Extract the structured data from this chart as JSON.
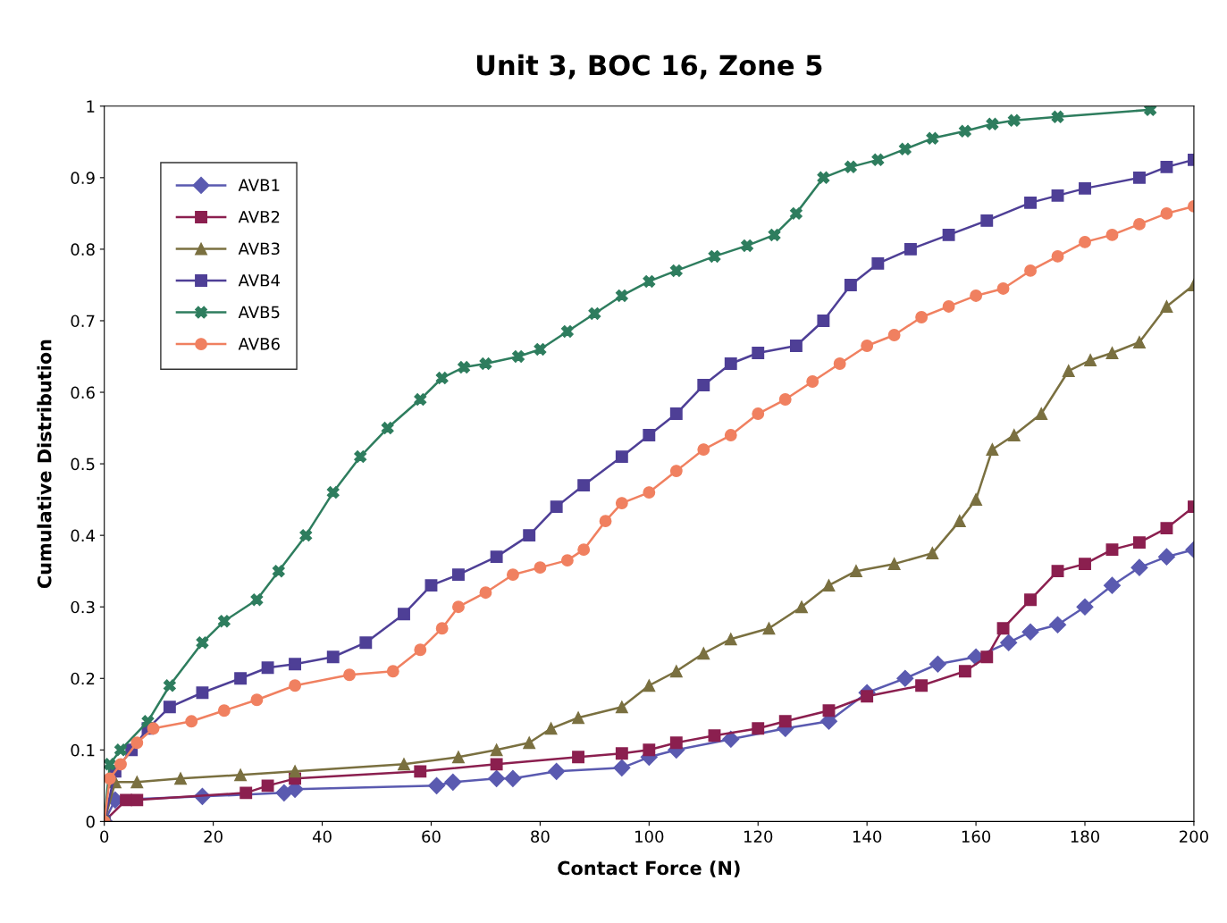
{
  "chart_data": {
    "type": "line",
    "title": "Unit 3, BOC 16, Zone 5",
    "xlabel": "Contact Force (N)",
    "ylabel": "Cumulative Distribution",
    "xlim": [
      0,
      200
    ],
    "xticks": [
      0,
      20,
      40,
      60,
      80,
      100,
      120,
      140,
      160,
      180,
      200
    ],
    "ylim": [
      0,
      1
    ],
    "yticks": [
      0,
      0.1,
      0.2,
      0.3,
      0.4,
      0.5,
      0.6,
      0.7,
      0.8,
      0.9,
      1
    ],
    "grid": false,
    "legend": "top left",
    "line_style": "solid",
    "series": [
      {
        "name": "AVB1",
        "color": "#5a5ab0",
        "marker": "diamond",
        "x": [
          0,
          2,
          18,
          33,
          35,
          61,
          64,
          72,
          75,
          83,
          95,
          100,
          105,
          115,
          125,
          133,
          140,
          147,
          153,
          160,
          166,
          170,
          175,
          180,
          185,
          190,
          195,
          200
        ],
        "values": [
          0,
          0.03,
          0.035,
          0.04,
          0.045,
          0.05,
          0.055,
          0.06,
          0.06,
          0.07,
          0.075,
          0.09,
          0.1,
          0.115,
          0.13,
          0.14,
          0.18,
          0.2,
          0.22,
          0.23,
          0.25,
          0.265,
          0.275,
          0.3,
          0.33,
          0.355,
          0.37,
          0.38
        ]
      },
      {
        "name": "AVB2",
        "color": "#8b1f4f",
        "marker": "square",
        "x": [
          0,
          4,
          6,
          26,
          30,
          35,
          58,
          72,
          87,
          95,
          100,
          105,
          112,
          120,
          125,
          133,
          140,
          150,
          158,
          162,
          165,
          170,
          175,
          180,
          185,
          190,
          195,
          200
        ],
        "values": [
          0,
          0.03,
          0.03,
          0.04,
          0.05,
          0.06,
          0.07,
          0.08,
          0.09,
          0.095,
          0.1,
          0.11,
          0.12,
          0.13,
          0.14,
          0.155,
          0.175,
          0.19,
          0.21,
          0.23,
          0.27,
          0.31,
          0.35,
          0.36,
          0.38,
          0.39,
          0.41,
          0.44
        ]
      },
      {
        "name": "AVB3",
        "color": "#7a7040",
        "marker": "triangle",
        "x": [
          0,
          2,
          6,
          14,
          25,
          35,
          55,
          65,
          72,
          78,
          82,
          87,
          95,
          100,
          105,
          110,
          115,
          122,
          128,
          133,
          138,
          145,
          152,
          157,
          160,
          163,
          167,
          172,
          177,
          181,
          185,
          190,
          195,
          200
        ],
        "values": [
          0,
          0.055,
          0.055,
          0.06,
          0.065,
          0.07,
          0.08,
          0.09,
          0.1,
          0.11,
          0.13,
          0.145,
          0.16,
          0.19,
          0.21,
          0.235,
          0.255,
          0.27,
          0.3,
          0.33,
          0.35,
          0.36,
          0.375,
          0.42,
          0.45,
          0.52,
          0.54,
          0.57,
          0.63,
          0.645,
          0.655,
          0.67,
          0.72,
          0.75
        ]
      },
      {
        "name": "AVB4",
        "color": "#4e3f96",
        "marker": "square",
        "x": [
          0,
          2,
          5,
          8,
          12,
          18,
          25,
          30,
          35,
          42,
          48,
          55,
          60,
          65,
          72,
          78,
          83,
          88,
          95,
          100,
          105,
          110,
          115,
          120,
          127,
          132,
          137,
          142,
          148,
          155,
          162,
          170,
          175,
          180,
          190,
          195,
          200
        ],
        "values": [
          0,
          0.07,
          0.1,
          0.13,
          0.16,
          0.18,
          0.2,
          0.215,
          0.22,
          0.23,
          0.25,
          0.29,
          0.33,
          0.345,
          0.37,
          0.4,
          0.44,
          0.47,
          0.51,
          0.54,
          0.57,
          0.61,
          0.64,
          0.655,
          0.665,
          0.7,
          0.75,
          0.78,
          0.8,
          0.82,
          0.84,
          0.865,
          0.875,
          0.885,
          0.9,
          0.915,
          0.925
        ]
      },
      {
        "name": "AVB5",
        "color": "#2e7d5e",
        "marker": "cross",
        "x": [
          0,
          1,
          3,
          8,
          12,
          18,
          22,
          28,
          32,
          37,
          42,
          47,
          52,
          58,
          62,
          66,
          70,
          76,
          80,
          85,
          90,
          95,
          100,
          105,
          112,
          118,
          123,
          127,
          132,
          137,
          142,
          147,
          152,
          158,
          163,
          167,
          175,
          192
        ],
        "values": [
          0,
          0.08,
          0.1,
          0.14,
          0.19,
          0.25,
          0.28,
          0.31,
          0.35,
          0.4,
          0.46,
          0.51,
          0.55,
          0.59,
          0.62,
          0.635,
          0.64,
          0.65,
          0.66,
          0.685,
          0.71,
          0.735,
          0.755,
          0.77,
          0.79,
          0.805,
          0.82,
          0.85,
          0.9,
          0.915,
          0.925,
          0.94,
          0.955,
          0.965,
          0.975,
          0.98,
          0.985,
          0.995
        ]
      },
      {
        "name": "AVB6",
        "color": "#f08060",
        "marker": "circle",
        "x": [
          0,
          1,
          3,
          6,
          9,
          16,
          22,
          28,
          35,
          45,
          53,
          58,
          62,
          65,
          70,
          75,
          80,
          85,
          88,
          92,
          95,
          100,
          105,
          110,
          115,
          120,
          125,
          130,
          135,
          140,
          145,
          150,
          155,
          160,
          165,
          170,
          175,
          180,
          185,
          190,
          195,
          200
        ],
        "values": [
          0,
          0.06,
          0.08,
          0.11,
          0.13,
          0.14,
          0.155,
          0.17,
          0.19,
          0.205,
          0.21,
          0.24,
          0.27,
          0.3,
          0.32,
          0.345,
          0.355,
          0.365,
          0.38,
          0.42,
          0.445,
          0.46,
          0.49,
          0.52,
          0.54,
          0.57,
          0.59,
          0.615,
          0.64,
          0.665,
          0.68,
          0.705,
          0.72,
          0.735,
          0.745,
          0.77,
          0.79,
          0.81,
          0.82,
          0.835,
          0.85,
          0.86
        ]
      }
    ]
  }
}
